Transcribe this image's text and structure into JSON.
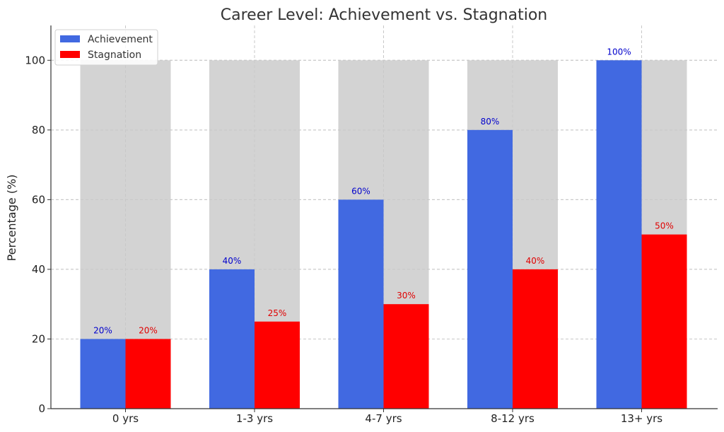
{
  "chart_data": {
    "type": "bar",
    "title": "Career Level: Achievement vs. Stagnation",
    "xlabel": "",
    "ylabel": "Percentage (%)",
    "ylim": [
      0,
      110
    ],
    "yticks": [
      0,
      20,
      40,
      60,
      80,
      100
    ],
    "categories": [
      "0 yrs",
      "1-3 yrs",
      "4-7 yrs",
      "8-12 yrs",
      "13+ yrs"
    ],
    "background_max": 100,
    "series": [
      {
        "name": "Achievement",
        "values": [
          20,
          40,
          60,
          80,
          100
        ],
        "labels": [
          "20%",
          "40%",
          "60%",
          "80%",
          "100%"
        ],
        "color": "#4169e1",
        "label_color": "#0000cc"
      },
      {
        "name": "Stagnation",
        "values": [
          20,
          25,
          30,
          40,
          50
        ],
        "labels": [
          "20%",
          "25%",
          "30%",
          "40%",
          "50%"
        ],
        "color": "#ff0000",
        "label_color": "#e00000"
      }
    ],
    "background_color": "#d3d3d3",
    "grid": true,
    "legend_position": "top-left"
  }
}
